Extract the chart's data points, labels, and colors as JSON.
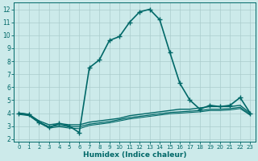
{
  "xlabel": "Humidex (Indice chaleur)",
  "bg_color": "#cceaea",
  "grid_color": "#aacccc",
  "line_color": "#006868",
  "xlim": [
    -0.5,
    23.5
  ],
  "ylim": [
    1.8,
    12.5
  ],
  "yticks": [
    2,
    3,
    4,
    5,
    6,
    7,
    8,
    9,
    10,
    11,
    12
  ],
  "xticks": [
    0,
    1,
    2,
    3,
    4,
    5,
    6,
    7,
    8,
    9,
    10,
    11,
    12,
    13,
    14,
    15,
    16,
    17,
    18,
    19,
    20,
    21,
    22,
    23
  ],
  "series": [
    {
      "x": [
        0,
        1,
        2,
        3,
        4,
        5,
        6,
        7,
        8,
        9,
        10,
        11,
        12,
        13,
        14,
        15,
        16,
        17,
        18,
        19,
        20,
        21,
        22,
        23
      ],
      "y": [
        4.0,
        3.9,
        3.3,
        2.9,
        3.2,
        3.0,
        2.5,
        7.5,
        8.1,
        9.6,
        9.9,
        11.0,
        11.8,
        12.0,
        11.2,
        8.7,
        6.3,
        5.0,
        4.3,
        4.6,
        4.5,
        4.6,
        5.2,
        4.0
      ],
      "marker": "+",
      "lw": 1.2,
      "ms": 5,
      "mew": 1.0
    },
    {
      "x": [
        0,
        1,
        2,
        3,
        4,
        5,
        6,
        7,
        8,
        9,
        10,
        11,
        12,
        13,
        14,
        15,
        16,
        17,
        18,
        19,
        20,
        21,
        22,
        23
      ],
      "y": [
        4.0,
        3.9,
        3.4,
        3.1,
        3.2,
        3.1,
        3.1,
        3.3,
        3.4,
        3.5,
        3.6,
        3.8,
        3.9,
        4.0,
        4.1,
        4.2,
        4.3,
        4.3,
        4.4,
        4.5,
        4.5,
        4.5,
        4.6,
        4.0
      ],
      "marker": null,
      "lw": 1.0,
      "ms": 0,
      "mew": 0
    },
    {
      "x": [
        0,
        1,
        2,
        3,
        4,
        5,
        6,
        7,
        8,
        9,
        10,
        11,
        12,
        13,
        14,
        15,
        16,
        17,
        18,
        19,
        20,
        21,
        22,
        23
      ],
      "y": [
        3.95,
        3.85,
        3.3,
        2.95,
        3.05,
        2.95,
        2.95,
        3.15,
        3.25,
        3.35,
        3.5,
        3.65,
        3.75,
        3.85,
        3.95,
        4.05,
        4.1,
        4.15,
        4.2,
        4.3,
        4.3,
        4.35,
        4.45,
        3.9
      ],
      "marker": null,
      "lw": 0.9,
      "ms": 0,
      "mew": 0
    },
    {
      "x": [
        0,
        1,
        2,
        3,
        4,
        5,
        6,
        7,
        8,
        9,
        10,
        11,
        12,
        13,
        14,
        15,
        16,
        17,
        18,
        19,
        20,
        21,
        22,
        23
      ],
      "y": [
        3.9,
        3.8,
        3.25,
        2.85,
        2.95,
        2.85,
        2.8,
        3.05,
        3.15,
        3.25,
        3.4,
        3.55,
        3.65,
        3.75,
        3.85,
        3.95,
        4.0,
        4.05,
        4.1,
        4.2,
        4.2,
        4.25,
        4.35,
        3.85
      ],
      "marker": null,
      "lw": 0.8,
      "ms": 0,
      "mew": 0
    }
  ]
}
